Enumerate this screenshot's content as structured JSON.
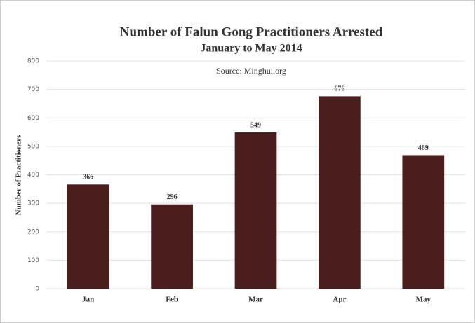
{
  "chart_data": {
    "type": "bar",
    "title": "Number of Falun Gong Practitioners Arrested",
    "subtitle": "January to May 2014",
    "annotation": "Source: Minghui.org",
    "y_label": "Number of Practitioners",
    "categories": [
      "Jan",
      "Feb",
      "Mar",
      "Apr",
      "May"
    ],
    "values": [
      366,
      296,
      549,
      676,
      469
    ],
    "color": "#4b1e1e",
    "ylim": [
      0,
      800
    ],
    "yticks": [
      0,
      100,
      200,
      300,
      400,
      500,
      600,
      700,
      800
    ],
    "grid": true
  }
}
